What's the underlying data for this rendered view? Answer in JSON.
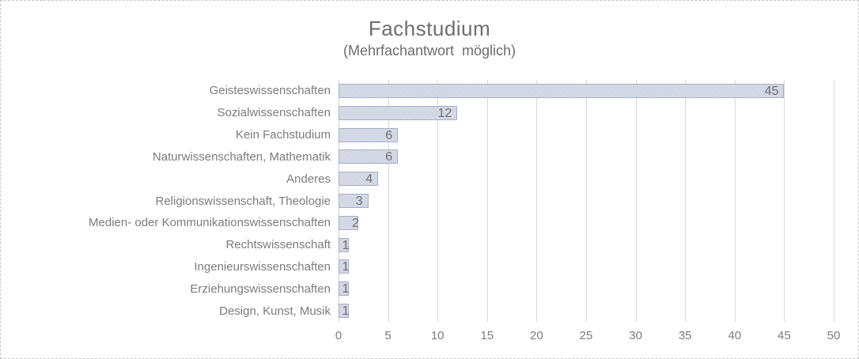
{
  "chart_data": {
    "type": "bar",
    "orientation": "horizontal",
    "title": "Fachstudium",
    "subtitle": "(Mehrfachantwort  möglich)",
    "categories": [
      "Geisteswissenschaften",
      "Sozialwissenschaften",
      "Kein Fachstudium",
      "Naturwissenschaften, Mathematik",
      "Anderes",
      "Religionswissenschaft, Theologie",
      "Medien- oder Kommunikationswissenschaften",
      "Rechtswissenschaft",
      "Ingenieurswissenschaften",
      "Erziehungswissenschaften",
      "Design, Kunst, Musik"
    ],
    "values": [
      45,
      12,
      6,
      6,
      4,
      3,
      2,
      1,
      1,
      1,
      1
    ],
    "xlabel": "",
    "ylabel": "",
    "xlim": [
      0,
      50
    ],
    "xticks": [
      0,
      5,
      10,
      15,
      20,
      25,
      30,
      35,
      40,
      45,
      50
    ],
    "grid": true,
    "legend": false,
    "data_labels": "inside-end",
    "colors": {
      "bar_fill": "#ced4e2",
      "bar_border": "#a6afc8",
      "gridline": "#d9d9d9",
      "text": "#7c7c7c",
      "title_text": "#6d6d6d",
      "data_label_text": "#6e6e6e"
    }
  }
}
